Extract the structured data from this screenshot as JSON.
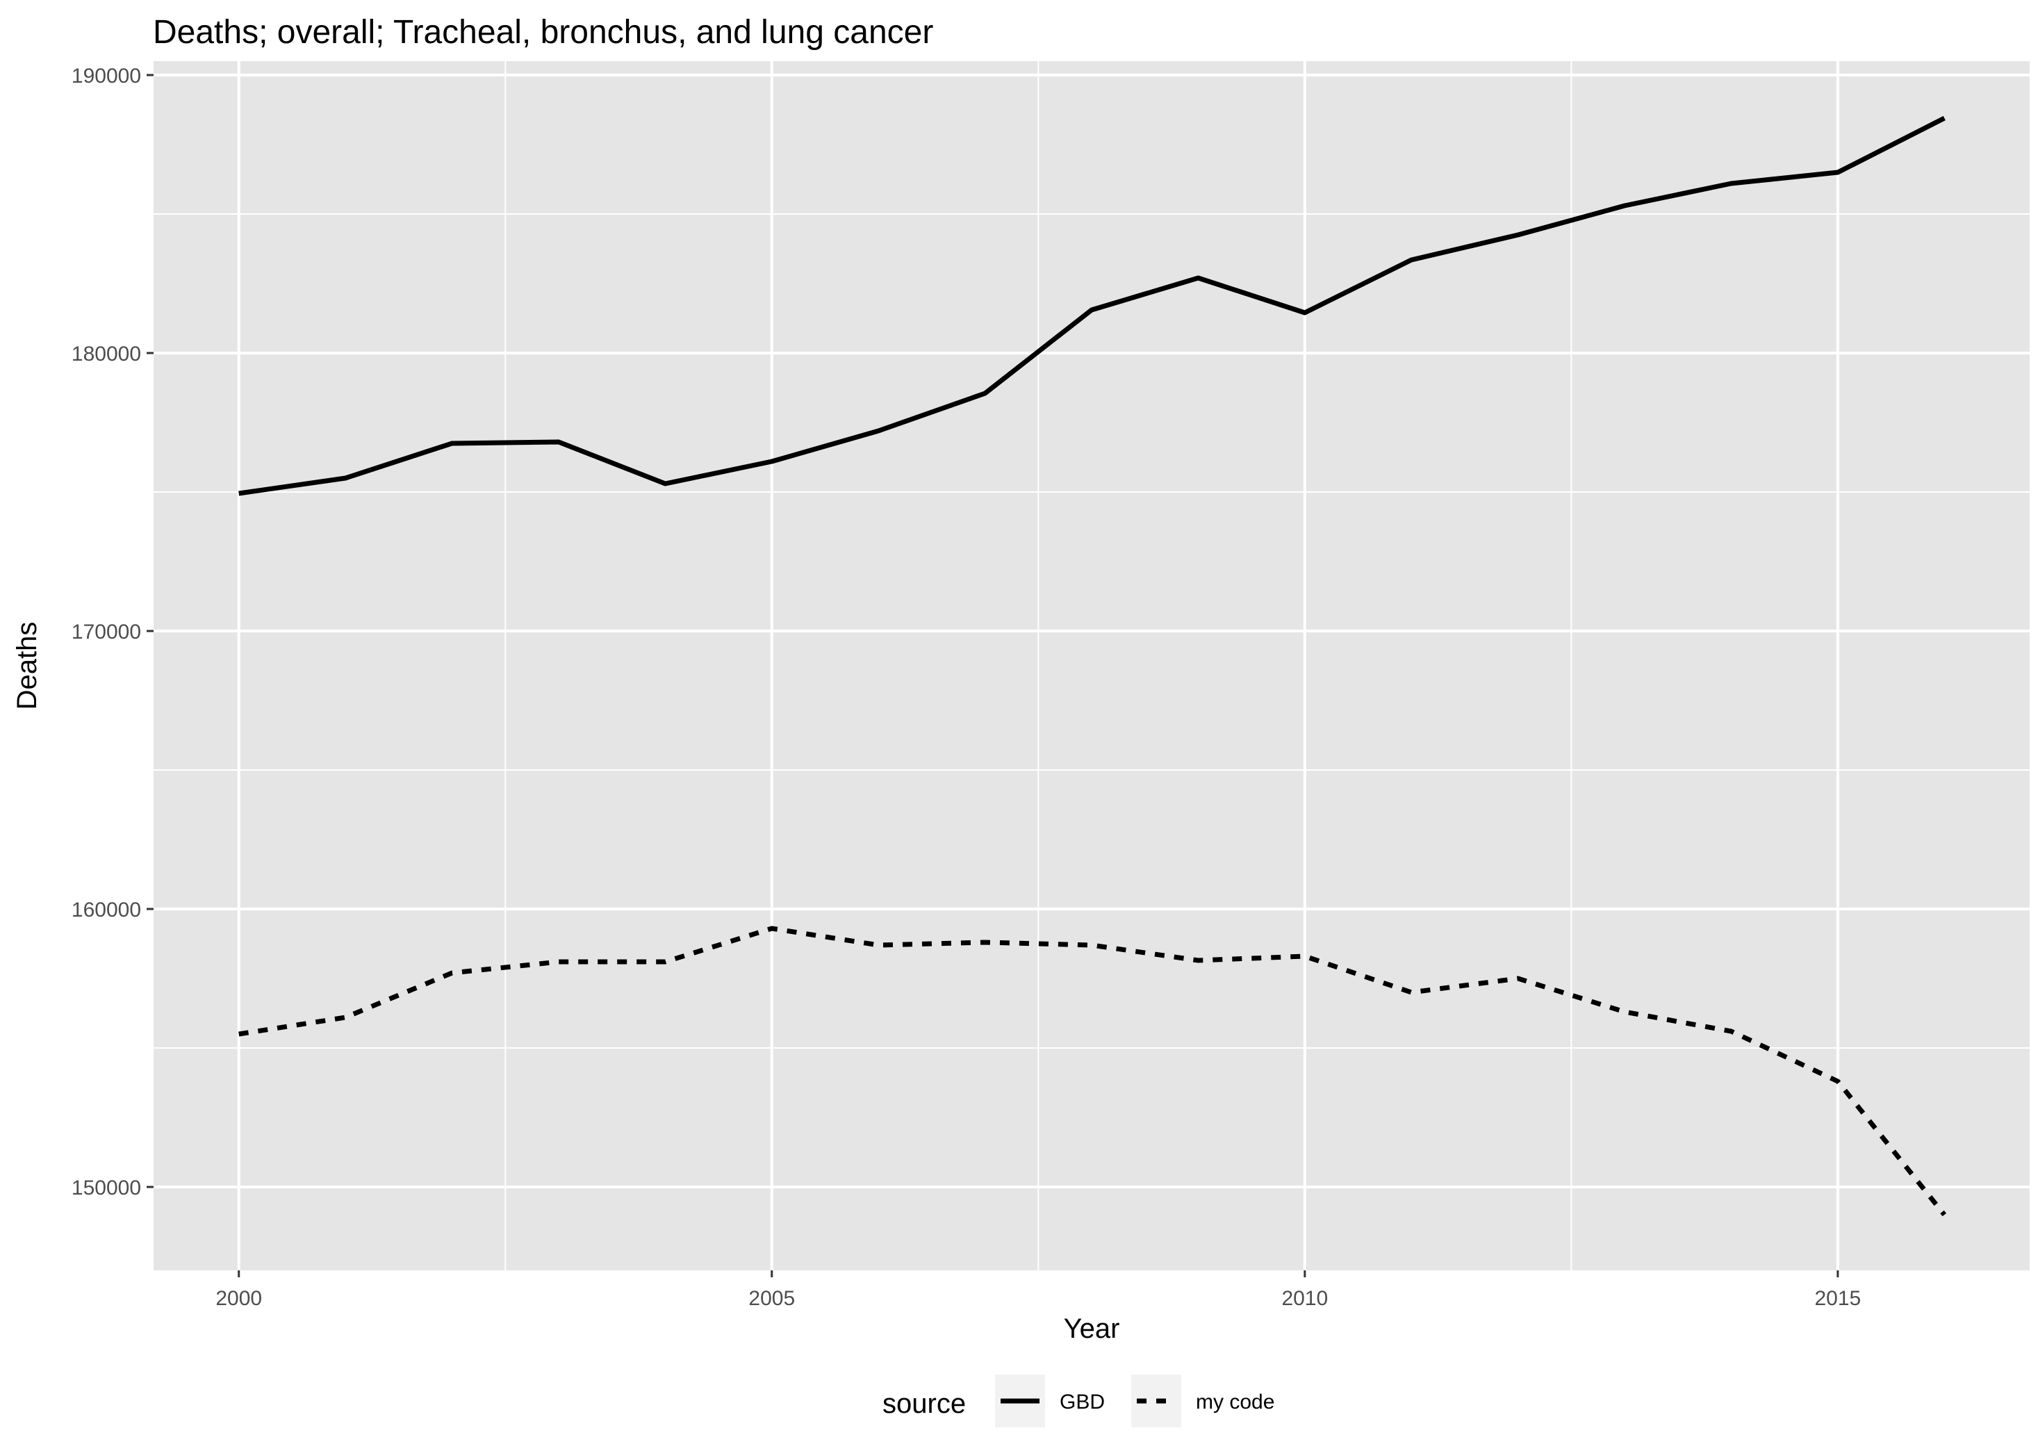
{
  "chart_data": {
    "type": "line",
    "title": "Deaths; overall; Tracheal, bronchus, and lung cancer",
    "xlabel": "Year",
    "ylabel": "Deaths",
    "xlim": [
      1999.2,
      2016.8
    ],
    "ylim": [
      147000,
      190500
    ],
    "x_ticks": [
      2000,
      2005,
      2010,
      2015
    ],
    "x_tick_labels": [
      "2000",
      "2005",
      "2010",
      "2015"
    ],
    "y_ticks": [
      150000,
      160000,
      170000,
      180000,
      190000
    ],
    "y_tick_labels": [
      "150000",
      "160000",
      "170000",
      "180000",
      "190000"
    ],
    "grid": true,
    "legend": {
      "title": "source",
      "position": "bottom",
      "entries": [
        "GBD",
        "my code"
      ]
    },
    "x": [
      2000,
      2001,
      2002,
      2003,
      2004,
      2005,
      2006,
      2007,
      2008,
      2009,
      2010,
      2011,
      2012,
      2013,
      2014,
      2015,
      2016
    ],
    "series": [
      {
        "name": "GBD",
        "line_style": "solid",
        "color": "#000000",
        "values": [
          174950,
          175500,
          176750,
          176800,
          175300,
          176100,
          177200,
          178550,
          181550,
          182700,
          181450,
          183350,
          184250,
          185300,
          186100,
          186500,
          188450
        ]
      },
      {
        "name": "my code",
        "line_style": "dashed",
        "color": "#000000",
        "values": [
          155500,
          156100,
          157700,
          158100,
          158100,
          159300,
          158700,
          158800,
          158700,
          158150,
          158300,
          157000,
          157500,
          156300,
          155600,
          153800,
          149000
        ]
      }
    ]
  },
  "colors": {
    "panel_background": "#e5e5e5",
    "grid": "#ffffff",
    "tick_text": "#4d4d4d",
    "line": "#000000"
  }
}
